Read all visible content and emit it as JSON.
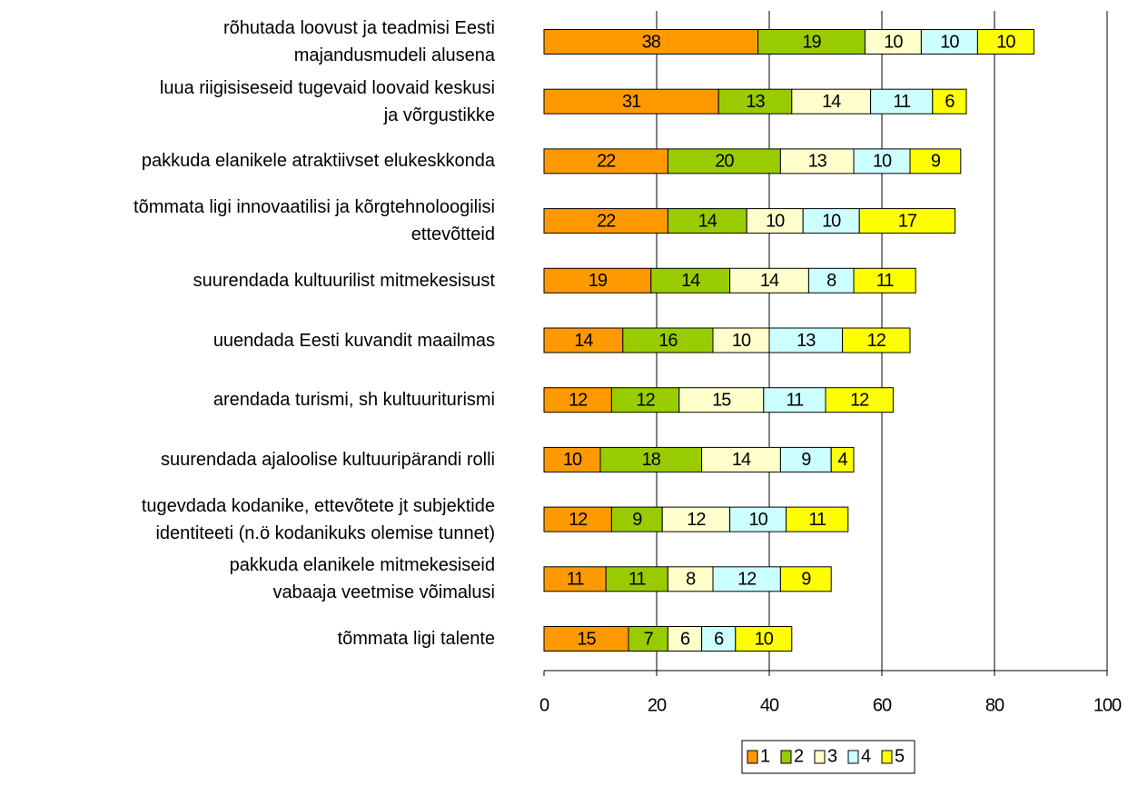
{
  "chart_data": {
    "type": "stacked_bar_horizontal",
    "categories": [
      "rõhutada loovust ja teadmisi Eesti\nmajandusmudeli alusena",
      "luua riigisiseseid tugevaid loovaid keskusi\nja võrgustikke",
      "pakkuda elanikele atraktiivset elukeskkonda",
      "tõmmata ligi innovaatilisi ja kõrgtehnoloogilisi\nettevõtteid",
      "suurendada kultuurilist mitmekesisust",
      "uuendada Eesti kuvandit maailmas",
      "arendada turismi, sh kultuuriturismi",
      "suurendada ajaloolise kultuuripärandi rolli",
      "tugevdada kodanike, ettevõtete jt subjektide\nidentiteeti (n.ö kodanikuks olemise tunnet)",
      "pakkuda elanikele mitmekesiseid\nvabaaja veetmise võimalusi",
      "tõmmata ligi talente"
    ],
    "series": [
      {
        "name": "1",
        "color": "#ff9900",
        "values": [
          38,
          31,
          22,
          22,
          19,
          14,
          12,
          10,
          12,
          11,
          15
        ]
      },
      {
        "name": "2",
        "color": "#99cc00",
        "values": [
          19,
          13,
          20,
          14,
          14,
          16,
          12,
          18,
          9,
          11,
          7
        ]
      },
      {
        "name": "3",
        "color": "#ffffcc",
        "values": [
          10,
          14,
          13,
          10,
          14,
          10,
          15,
          14,
          12,
          8,
          6
        ]
      },
      {
        "name": "4",
        "color": "#ccffff",
        "values": [
          10,
          11,
          10,
          10,
          8,
          13,
          11,
          9,
          10,
          12,
          6
        ]
      },
      {
        "name": "5",
        "color": "#ffff00",
        "values": [
          10,
          6,
          9,
          17,
          11,
          12,
          12,
          4,
          11,
          9,
          10
        ]
      }
    ],
    "xlim": [
      0,
      100
    ],
    "xticks": [
      0,
      20,
      40,
      60,
      80,
      100
    ],
    "grid": true,
    "legend": "bottom"
  }
}
